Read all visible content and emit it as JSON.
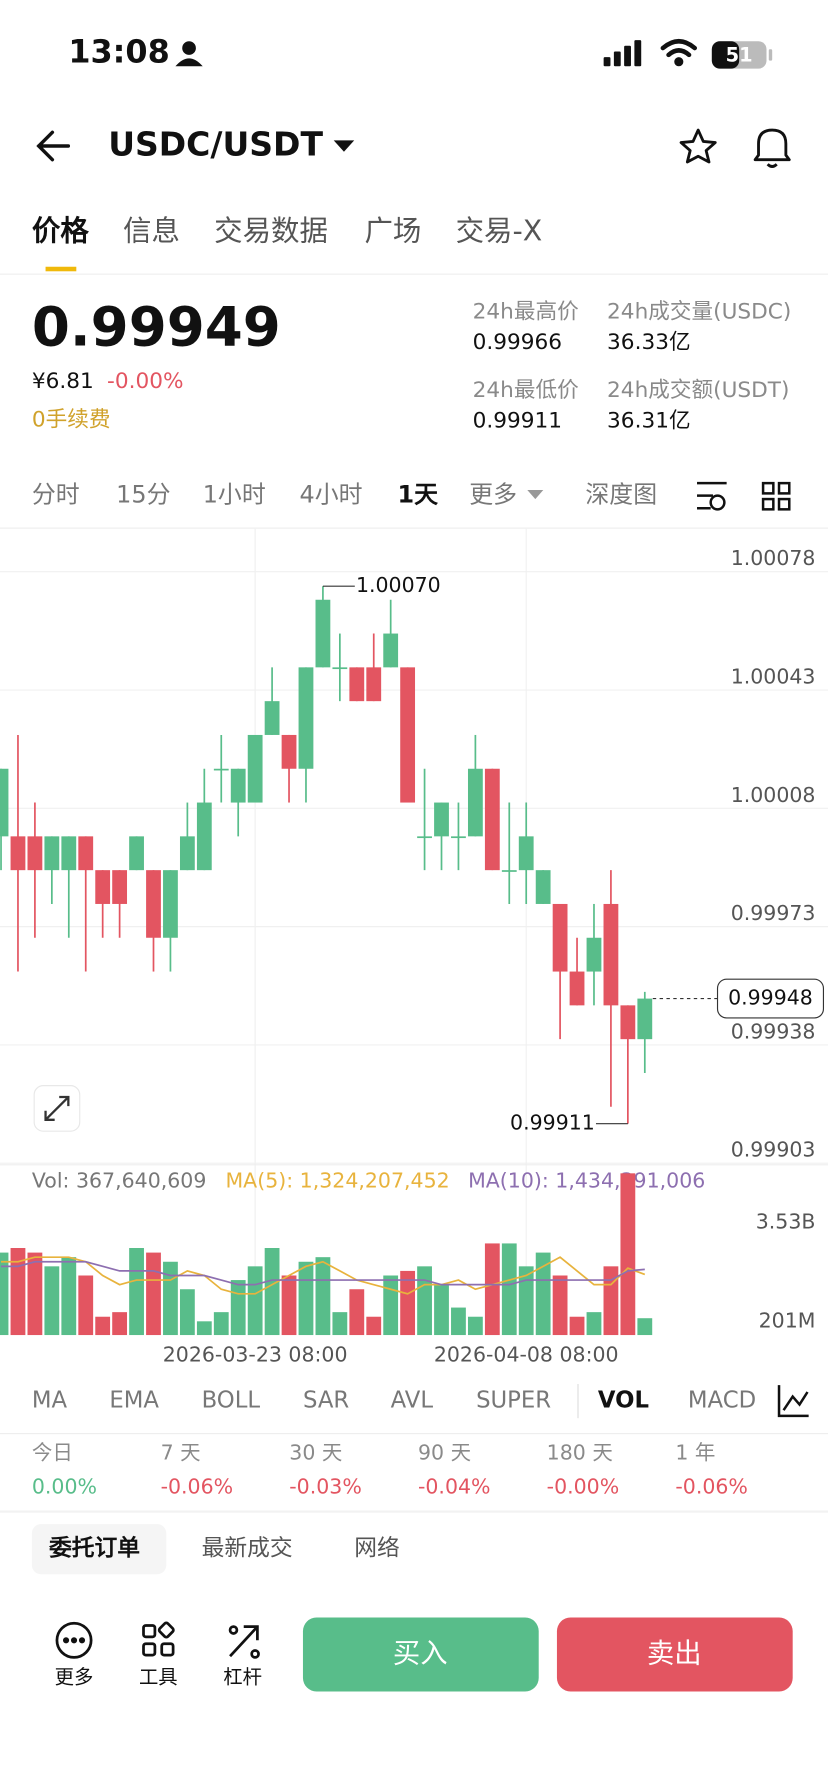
{
  "status": {
    "time": "13:08",
    "battery": "51"
  },
  "header": {
    "pair": "USDC/USDT"
  },
  "tabs": [
    "价格",
    "信息",
    "交易数据",
    "广场",
    "交易-X"
  ],
  "price": {
    "last": "0.99949",
    "cny": "¥6.81",
    "change": "-0.00%",
    "fee": "0手续费"
  },
  "stats": [
    {
      "label": "24h最高价",
      "value": "0.99966"
    },
    {
      "label": "24h成交量(USDC)",
      "value": "36.33亿"
    },
    {
      "label": "24h最低价",
      "value": "0.99911"
    },
    {
      "label": "24h成交额(USDT)",
      "value": "36.31亿"
    }
  ],
  "intervals": [
    "分时",
    "15分",
    "1小时",
    "4小时",
    "1天",
    "更多",
    "深度图"
  ],
  "chart_data": [
    {
      "type": "candlestick",
      "open": [
        0.99996,
        0.99996,
        0.99996,
        0.99986,
        0.99986,
        0.99996,
        0.99986,
        0.99986,
        0.99986,
        0.99986,
        0.99966,
        0.99986,
        0.99986,
        1.00016,
        1.00006,
        1.00006,
        1.00026,
        1.00026,
        1.00016,
        1.00046,
        1.00046,
        1.00046,
        1.00046,
        1.00046,
        1.00046,
        0.99996,
        0.99996,
        0.99996,
        0.99996,
        1.00016,
        0.99986,
        0.99986,
        0.99976,
        0.99976,
        0.99956,
        0.99956,
        0.99976,
        0.99946,
        0.99936
      ],
      "high": [
        1.00016,
        1.00026,
        1.00006,
        0.99996,
        0.99996,
        0.99996,
        0.99986,
        0.99986,
        0.99996,
        0.99986,
        0.99986,
        1.00006,
        1.00016,
        1.00026,
        1.00016,
        1.00026,
        1.00046,
        1.00026,
        1.00046,
        1.0007,
        1.00056,
        1.00046,
        1.00056,
        1.00066,
        1.00046,
        1.00016,
        1.00006,
        1.00006,
        1.00026,
        1.00016,
        1.00006,
        1.00006,
        0.99986,
        0.99976,
        0.99966,
        0.99976,
        0.99986,
        0.99946,
        0.9995
      ],
      "low": [
        0.99986,
        0.99956,
        0.99966,
        0.99976,
        0.99966,
        0.99956,
        0.99966,
        0.99966,
        0.99986,
        0.99956,
        0.99956,
        0.99986,
        0.99986,
        1.00006,
        0.99996,
        1.00006,
        1.00026,
        1.00006,
        1.00006,
        1.00046,
        1.00036,
        1.00036,
        1.00036,
        1.00046,
        1.00006,
        0.99986,
        0.99986,
        0.99986,
        0.99996,
        0.99986,
        0.99976,
        0.99976,
        0.99976,
        0.99936,
        0.99946,
        0.99946,
        0.99916,
        0.99911,
        0.99926
      ],
      "close": [
        1.00016,
        0.99986,
        0.99986,
        0.99996,
        0.99996,
        0.99986,
        0.99976,
        0.99976,
        0.99996,
        0.99966,
        0.99986,
        0.99996,
        1.00006,
        1.00016,
        1.00016,
        1.00026,
        1.00036,
        1.00016,
        1.00046,
        1.00066,
        1.00046,
        1.00036,
        1.00036,
        1.00056,
        1.00006,
        0.99996,
        1.00006,
        0.99996,
        1.00016,
        0.99986,
        0.99986,
        0.99996,
        0.99986,
        0.99956,
        0.99946,
        0.99966,
        0.99946,
        0.99936,
        0.99948
      ],
      "up_color": "#58bd8a",
      "down_color": "#e35561",
      "ylim": [
        0.99899,
        1.00085
      ],
      "yticks": [
        1.00078,
        1.00043,
        1.00008,
        0.99973,
        0.99938,
        0.99903
      ],
      "grid": true,
      "annotations": {
        "high": "1.00070",
        "low": "0.99911"
      },
      "last_price": 0.99948
    },
    {
      "type": "bar",
      "title": "Vol: 367,640,609",
      "categories": [
        null,
        null,
        null,
        null,
        null,
        null,
        null,
        null,
        null,
        null,
        null,
        null,
        null,
        null,
        null,
        "2026-03-23 08:00",
        null,
        null,
        null,
        null,
        null,
        null,
        null,
        null,
        null,
        null,
        null,
        null,
        null,
        null,
        null,
        "2026-04-08 08:00",
        null,
        null,
        null,
        null,
        null,
        null,
        null
      ],
      "values": [
        1800000000,
        1900000000,
        1800000000,
        1500000000,
        1700000000,
        1300000000,
        400000000,
        500000000,
        1900000000,
        1800000000,
        1600000000,
        1000000000,
        300000000,
        500000000,
        1200000000,
        1500000000,
        1900000000,
        1300000000,
        1600000000,
        1700000000,
        500000000,
        1000000000,
        400000000,
        1300000000,
        1400000000,
        1500000000,
        1100000000,
        600000000,
        400000000,
        2000000000,
        2000000000,
        1500000000,
        1800000000,
        1300000000,
        400000000,
        500000000,
        1500000000,
        3530000000,
        367640609
      ],
      "series": [
        {
          "name": "MA(5): 1,324,207,452",
          "color": "#e8b33d",
          "values": [
            1600000000,
            1600000000,
            1700000000,
            1700000000,
            1700000000,
            1600000000,
            1300000000,
            1100000000,
            1200000000,
            1200000000,
            1200000000,
            1400000000,
            1300000000,
            1000000000,
            900000000,
            900000000,
            1100000000,
            1300000000,
            1500000000,
            1600000000,
            1400000000,
            1200000000,
            1100000000,
            1000000000,
            900000000,
            1100000000,
            1100000000,
            1200000000,
            1000000000,
            1100000000,
            1200000000,
            1300000000,
            1500000000,
            1700000000,
            1400000000,
            1100000000,
            1100000000,
            1460000000,
            1324207452
          ]
        },
        {
          "name": "MA(10): 1,434,391,006",
          "color": "#8d6fb0",
          "values": [
            1500000000,
            1500000000,
            1600000000,
            1600000000,
            1600000000,
            1600000000,
            1500000000,
            1400000000,
            1400000000,
            1400000000,
            1300000000,
            1300000000,
            1300000000,
            1200000000,
            1100000000,
            1100000000,
            1200000000,
            1200000000,
            1200000000,
            1200000000,
            1200000000,
            1200000000,
            1200000000,
            1200000000,
            1200000000,
            1200000000,
            1100000000,
            1100000000,
            1100000000,
            1100000000,
            1100000000,
            1200000000,
            1200000000,
            1200000000,
            1200000000,
            1200000000,
            1200000000,
            1400000000,
            1434391006
          ]
        }
      ],
      "ylim": [
        0,
        3530000000
      ],
      "yticks": [
        {
          "value": 3530000000,
          "label": "3.53B"
        },
        {
          "value": 201000000,
          "label": "201M"
        }
      ]
    }
  ],
  "indicators": [
    "MA",
    "EMA",
    "BOLL",
    "SAR",
    "AVL",
    "SUPER",
    "VOL",
    "MACD"
  ],
  "returns": [
    {
      "label": "今日",
      "value": "0.00%"
    },
    {
      "label": "7 天",
      "value": "-0.06%"
    },
    {
      "label": "30 天",
      "value": "-0.03%"
    },
    {
      "label": "90 天",
      "value": "-0.04%"
    },
    {
      "label": "180 天",
      "value": "-0.00%"
    },
    {
      "label": "1 年",
      "value": "-0.06%"
    }
  ],
  "order_tabs": [
    "委托订单",
    "最新成交",
    "网络"
  ],
  "toolbar": [
    "更多",
    "工具",
    "杠杆"
  ],
  "actions": {
    "buy": "买入",
    "sell": "卖出"
  }
}
